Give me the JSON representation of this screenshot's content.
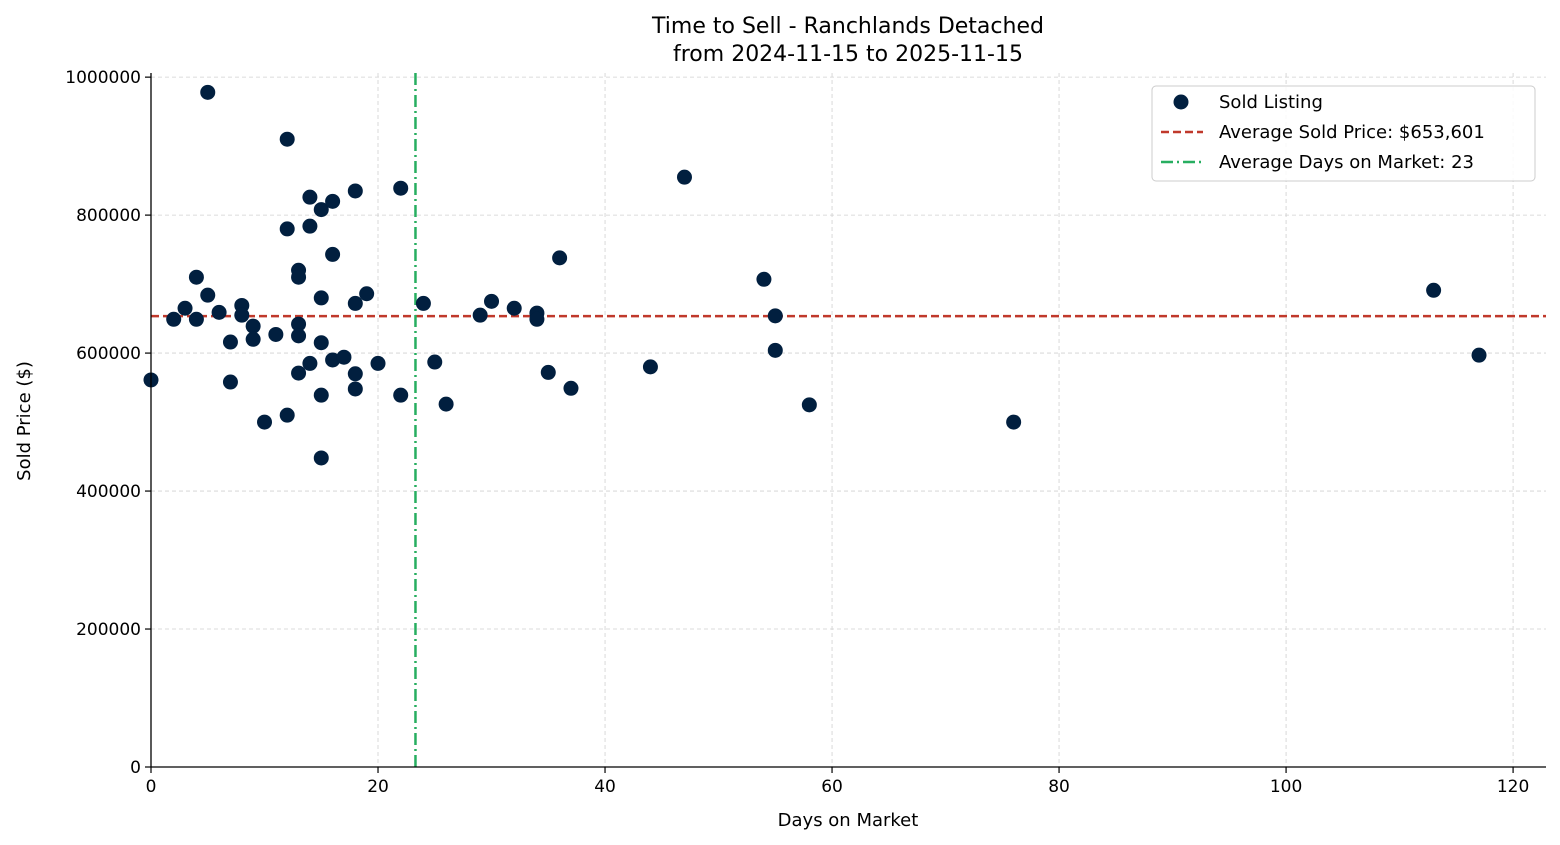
{
  "chart_data": {
    "type": "scatter",
    "title": "Time to Sell - Ranchlands Detached",
    "subtitle": "from 2024-11-15 to 2025-11-15",
    "xlabel": "Days on Market",
    "ylabel": "Sold Price ($)",
    "xlim": [
      0,
      122.9
    ],
    "ylim": [
      0,
      1006000
    ],
    "xticks": [
      0,
      20,
      40,
      60,
      80,
      100,
      120
    ],
    "yticks": [
      0,
      200000,
      400000,
      600000,
      800000,
      1000000
    ],
    "grid": true,
    "legend_position": "top-right",
    "colors": {
      "points": "#011f3f",
      "avg_price": "#c0392b",
      "avg_days": "#27ae60"
    },
    "series": [
      {
        "name": "Sold Listing",
        "points": [
          [
            0,
            561000
          ],
          [
            2,
            649000
          ],
          [
            3,
            665000
          ],
          [
            4,
            710000
          ],
          [
            4,
            649000
          ],
          [
            5,
            978000
          ],
          [
            5,
            684000
          ],
          [
            6,
            659000
          ],
          [
            7,
            616000
          ],
          [
            7,
            558000
          ],
          [
            8,
            669000
          ],
          [
            8,
            655000
          ],
          [
            9,
            639000
          ],
          [
            9,
            620000
          ],
          [
            10,
            500000
          ],
          [
            11,
            627000
          ],
          [
            12,
            910000
          ],
          [
            12,
            780000
          ],
          [
            12,
            510000
          ],
          [
            13,
            720000
          ],
          [
            13,
            710000
          ],
          [
            13,
            642000
          ],
          [
            13,
            625000
          ],
          [
            13,
            571000
          ],
          [
            14,
            826000
          ],
          [
            14,
            784000
          ],
          [
            14,
            585000
          ],
          [
            15,
            808000
          ],
          [
            15,
            680000
          ],
          [
            15,
            615000
          ],
          [
            15,
            539000
          ],
          [
            15,
            448000
          ],
          [
            16,
            820000
          ],
          [
            16,
            743000
          ],
          [
            16,
            590000
          ],
          [
            17,
            594000
          ],
          [
            18,
            835000
          ],
          [
            18,
            672000
          ],
          [
            18,
            570000
          ],
          [
            18,
            548000
          ],
          [
            19,
            686000
          ],
          [
            20,
            585000
          ],
          [
            22,
            839000
          ],
          [
            22,
            539000
          ],
          [
            24,
            672000
          ],
          [
            25,
            587000
          ],
          [
            26,
            526000
          ],
          [
            29,
            655000
          ],
          [
            30,
            675000
          ],
          [
            32,
            665000
          ],
          [
            34,
            658000
          ],
          [
            34,
            649000
          ],
          [
            35,
            572000
          ],
          [
            36,
            738000
          ],
          [
            37,
            549000
          ],
          [
            44,
            580000
          ],
          [
            47,
            855000
          ],
          [
            54,
            707000
          ],
          [
            55,
            654000
          ],
          [
            55,
            604000
          ],
          [
            58,
            525000
          ],
          [
            76,
            500000
          ],
          [
            113,
            691000
          ],
          [
            117,
            597000
          ]
        ]
      }
    ],
    "reference_lines": {
      "avg_price": {
        "label": "Average Sold Price: $653,601",
        "value": 653601
      },
      "avg_days": {
        "label": "Average Days on Market: 23",
        "value": 23.3
      }
    }
  }
}
